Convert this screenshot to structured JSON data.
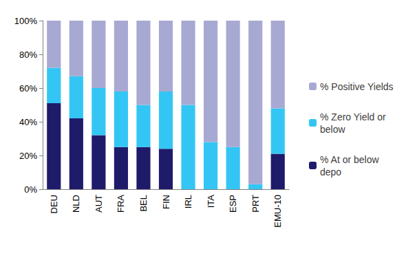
{
  "chart_data": {
    "type": "bar",
    "stacked": true,
    "grid": false,
    "legend": "right",
    "categories": [
      "DEU",
      "NLD",
      "AUT",
      "FRA",
      "BEL",
      "FIN",
      "IRL",
      "ITA",
      "ESP",
      "PRT",
      "EMU-10"
    ],
    "series": [
      {
        "name": "% At or below depo",
        "color": "#1f1b6b",
        "values": [
          51,
          42,
          32,
          25,
          25,
          24,
          0,
          0,
          0,
          0,
          21
        ]
      },
      {
        "name": "% Zero Yield or below",
        "color": "#33c6f4",
        "values": [
          21,
          25,
          28,
          33,
          25,
          34,
          50,
          28,
          25,
          3,
          27
        ]
      },
      {
        "name": "% Positive Yields",
        "color": "#a7a9d2",
        "values": [
          28,
          33,
          40,
          42,
          50,
          42,
          50,
          72,
          75,
          97,
          52
        ]
      }
    ],
    "ylim": [
      0,
      100
    ],
    "yticks": [
      {
        "value": 0,
        "label": "0%"
      },
      {
        "value": 20,
        "label": "20%"
      },
      {
        "value": 40,
        "label": "40%"
      },
      {
        "value": 60,
        "label": "60%"
      },
      {
        "value": 80,
        "label": "80%"
      },
      {
        "value": 100,
        "label": "100%"
      }
    ]
  }
}
